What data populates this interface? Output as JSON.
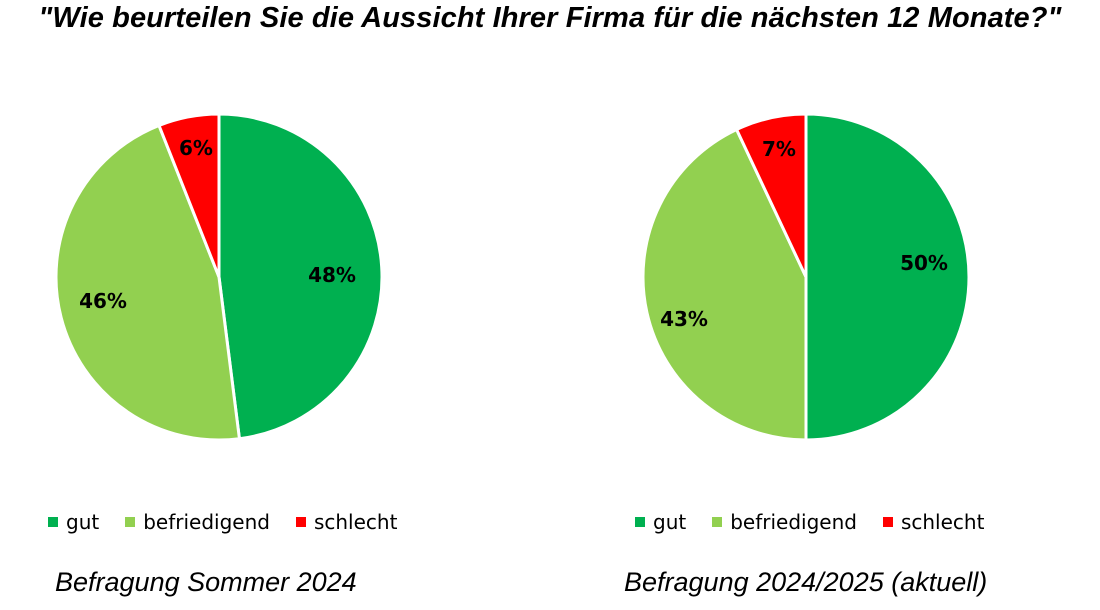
{
  "title": "\"Wie beurteilen Sie die Aussicht Ihrer Firma für die nächsten 12 Monate?\"",
  "colors": {
    "gut": "#00B050",
    "befriedigend": "#92D050",
    "schlecht": "#FF0000"
  },
  "legend": {
    "gut": "gut",
    "befriedigend": "befriedigend",
    "schlecht": "schlecht"
  },
  "charts": [
    {
      "caption": "Befragung Sommer 2024",
      "labels": {
        "gut": "48%",
        "befriedigend": "46%",
        "schlecht": "6%"
      }
    },
    {
      "caption": "Befragung 2024/2025 (aktuell)",
      "labels": {
        "gut": "50%",
        "befriedigend": "43%",
        "schlecht": "7%"
      }
    }
  ],
  "chart_data": [
    {
      "type": "pie",
      "title": "\"Wie beurteilen Sie die Aussicht Ihrer Firma für die nächsten 12 Monate?\"",
      "subtitle": "Befragung Sommer 2024",
      "categories": [
        "gut",
        "befriedigend",
        "schlecht"
      ],
      "values": [
        48,
        46,
        6
      ],
      "unit": "%",
      "colors": [
        "#00B050",
        "#92D050",
        "#FF0000"
      ],
      "legend_position": "bottom"
    },
    {
      "type": "pie",
      "title": "\"Wie beurteilen Sie die Aussicht Ihrer Firma für die nächsten 12 Monate?\"",
      "subtitle": "Befragung 2024/2025 (aktuell)",
      "categories": [
        "gut",
        "befriedigend",
        "schlecht"
      ],
      "values": [
        50,
        43,
        7
      ],
      "unit": "%",
      "colors": [
        "#00B050",
        "#92D050",
        "#FF0000"
      ],
      "legend_position": "bottom"
    }
  ]
}
